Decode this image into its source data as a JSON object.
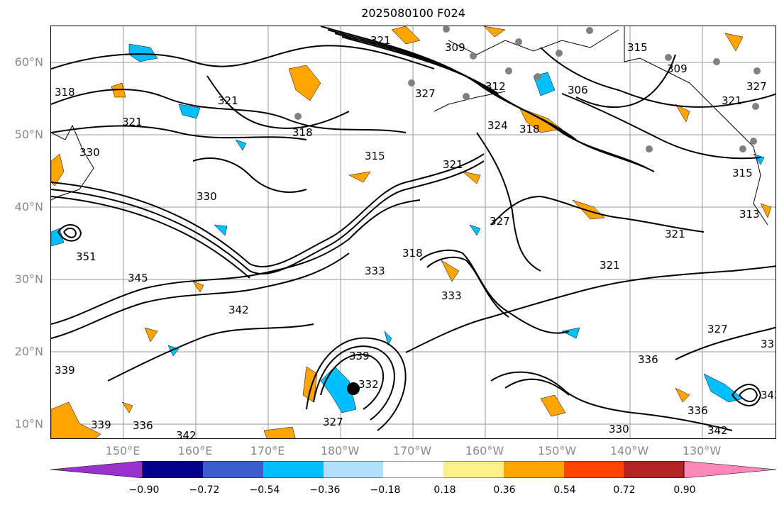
{
  "title": "2025080100 F024",
  "lat_labels": [
    "60°N",
    "50°N",
    "40°N",
    "30°N",
    "20°N",
    "10°N"
  ],
  "lon_labels": [
    "150°E",
    "160°E",
    "170°E",
    "180°W",
    "170°W",
    "160°W",
    "150°W",
    "140°W",
    "130°W"
  ],
  "contour_labels": [
    "318",
    "321",
    "321",
    "330",
    "321",
    "318",
    "315",
    "321",
    "327",
    "312",
    "309",
    "324",
    "318",
    "306",
    "315",
    "309",
    "321",
    "327",
    "315",
    "313",
    "330",
    "327",
    "351",
    "345",
    "339",
    "342",
    "333",
    "318",
    "333",
    "321",
    "321",
    "327",
    "342",
    "339",
    "336",
    "342",
    "332",
    "327",
    "336",
    "342",
    "33",
    "339",
    "336",
    "330"
  ],
  "colorbar": {
    "ticks": [
      "−0.90",
      "−0.72",
      "−0.54",
      "−0.36",
      "−0.18",
      "0.18",
      "0.36",
      "0.54",
      "0.72",
      "0.90"
    ],
    "colors": [
      "#9932cc",
      "#00008b",
      "#3a5fcd",
      "#00bfff",
      "#b0e2ff",
      "#ffffff",
      "#fff08a",
      "#ffa500",
      "#ff4500",
      "#b22222",
      "#ff88b8"
    ]
  },
  "colors": {
    "positive": "#ffa500",
    "negative": "#00bfff",
    "gridline": "#9a9a9a",
    "station": "#808080"
  }
}
